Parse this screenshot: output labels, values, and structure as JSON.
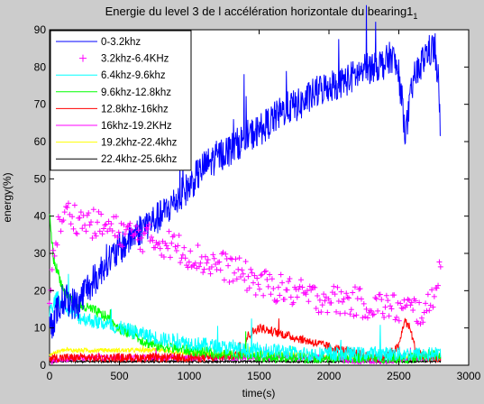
{
  "chart_data": {
    "type": "line",
    "title": "Energie du level 3 de l accélération horizontale du bearing1",
    "title_subscript": "1",
    "xlabel": "time(s)",
    "ylabel": "energy(%)",
    "xlim": [
      0,
      3000
    ],
    "ylim": [
      0,
      90
    ],
    "xticks": [
      0,
      500,
      1000,
      1500,
      2000,
      2500,
      3000
    ],
    "yticks": [
      0,
      10,
      20,
      30,
      40,
      50,
      60,
      70,
      80,
      90
    ],
    "grid": false,
    "legend_position": "top-left",
    "x_end": 2800,
    "series": [
      {
        "name": "0-3.2khz",
        "color": "#0000ff",
        "marker": "none",
        "x": [
          0,
          50,
          100,
          150,
          200,
          250,
          300,
          350,
          400,
          450,
          500,
          600,
          700,
          800,
          900,
          1000,
          1100,
          1200,
          1300,
          1400,
          1500,
          1600,
          1700,
          1800,
          1900,
          2000,
          2100,
          2200,
          2300,
          2400,
          2450,
          2500,
          2550,
          2600,
          2650,
          2700,
          2750,
          2780,
          2800
        ],
        "y": [
          10,
          14,
          18,
          17,
          16,
          20,
          22,
          24,
          28,
          29,
          31,
          35,
          38,
          40,
          44,
          48,
          53,
          56,
          58,
          61,
          63,
          66,
          69,
          70,
          73,
          75,
          76,
          78,
          80,
          81,
          83,
          78,
          62,
          76,
          80,
          84,
          85,
          78,
          60
        ]
      },
      {
        "name": "3.2khz-6.4KHz",
        "color": "#ff00ff",
        "marker": "+",
        "x": [
          0,
          50,
          100,
          150,
          200,
          300,
          400,
          500,
          600,
          700,
          800,
          900,
          1000,
          1100,
          1200,
          1300,
          1400,
          1500,
          1600,
          1700,
          1800,
          1900,
          2000,
          2100,
          2200,
          2300,
          2400,
          2500,
          2600,
          2700,
          2750,
          2800
        ],
        "y": [
          20,
          35,
          40,
          41,
          39,
          38,
          37,
          36,
          35,
          34,
          33,
          32,
          30,
          28,
          27,
          26,
          24,
          22,
          21,
          20,
          19,
          18,
          18,
          17,
          17,
          16,
          16,
          15,
          15,
          14,
          20,
          26
        ]
      },
      {
        "name": "6.4khz-9.6khz",
        "color": "#00ffff",
        "marker": "none",
        "x": [
          0,
          50,
          100,
          200,
          300,
          400,
          500,
          600,
          700,
          800,
          1000,
          1200,
          1400,
          1600,
          1800,
          2000,
          2200,
          2400,
          2600,
          2800
        ],
        "y": [
          14,
          18,
          16,
          13,
          12,
          11,
          10,
          9,
          8,
          7,
          6,
          5,
          4,
          4,
          3,
          3,
          3,
          3,
          3,
          3
        ]
      },
      {
        "name": "9.6khz-12.8khz",
        "color": "#00ff00",
        "marker": "none",
        "x": [
          0,
          30,
          60,
          100,
          150,
          200,
          300,
          400,
          500,
          600,
          700,
          800,
          1000,
          1200,
          1400,
          1600,
          1800,
          2000,
          2200,
          2400,
          2600,
          2800
        ],
        "y": [
          40,
          28,
          25,
          20,
          18,
          16,
          15,
          13,
          10,
          8,
          6,
          5,
          4,
          3,
          3,
          2,
          2,
          2,
          2,
          2,
          2,
          3
        ]
      },
      {
        "name": "12.8khz-16khz",
        "color": "#ff0000",
        "marker": "none",
        "x": [
          0,
          200,
          400,
          600,
          800,
          1000,
          1200,
          1380,
          1420,
          1500,
          1600,
          1700,
          1800,
          1900,
          2000,
          2100,
          2200,
          2300,
          2400,
          2500,
          2540,
          2580,
          2620,
          2700,
          2800
        ],
        "y": [
          2,
          2,
          2,
          2,
          2,
          2,
          2,
          3,
          8,
          10,
          9,
          8,
          7,
          6,
          5,
          4,
          3,
          2,
          2,
          5,
          12,
          10,
          4,
          2,
          2
        ]
      },
      {
        "name": "16khz-19.2KHz",
        "color": "#ff00ff",
        "marker": "none",
        "x": [
          0,
          200,
          400,
          600,
          800,
          1000,
          1200,
          1400,
          1600,
          1800,
          2000,
          2200,
          2400,
          2600,
          2800
        ],
        "y": [
          1,
          2,
          2,
          2,
          2,
          2,
          2,
          2,
          2,
          2,
          2,
          1,
          1,
          2,
          2
        ]
      },
      {
        "name": "19.2khz-22.4khz",
        "color": "#ffff00",
        "marker": "none",
        "x": [
          0,
          100,
          200,
          400,
          600,
          800,
          1000,
          1200,
          1400,
          1600,
          1800,
          2000,
          2200,
          2400,
          2600,
          2800
        ],
        "y": [
          3,
          4,
          4,
          4,
          4,
          4,
          3,
          3,
          3,
          3,
          3,
          2,
          2,
          2,
          2,
          2
        ]
      },
      {
        "name": "22.4khz-25.6khz",
        "color": "#000000",
        "marker": "none",
        "x": [
          0,
          200,
          400,
          600,
          800,
          1000,
          1200,
          1400,
          1600,
          1800,
          2000,
          2200,
          2400,
          2600,
          2800
        ],
        "y": [
          1,
          1,
          1,
          1,
          1,
          1,
          1,
          1,
          1,
          1,
          1,
          1,
          1,
          1,
          1
        ]
      }
    ]
  }
}
